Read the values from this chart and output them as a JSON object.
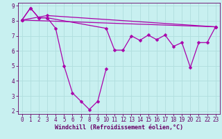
{
  "background_color": "#c8f0f0",
  "grid_color": "#b0dede",
  "line_color": "#aa00aa",
  "marker_color": "#aa00aa",
  "xlabel": "Windchill (Refroidissement éolien,°C)",
  "xlabel_color": "#660066",
  "tick_color": "#660066",
  "spine_color": "#660066",
  "xlim": [
    -0.5,
    23.5
  ],
  "ylim": [
    1.8,
    9.2
  ],
  "yticks": [
    2,
    3,
    4,
    5,
    6,
    7,
    8,
    9
  ],
  "xticks": [
    0,
    1,
    2,
    3,
    4,
    5,
    6,
    7,
    8,
    9,
    10,
    11,
    12,
    13,
    14,
    15,
    16,
    17,
    18,
    19,
    20,
    21,
    22,
    23
  ],
  "line1_x": [
    0,
    1,
    2,
    3,
    10,
    11,
    12,
    13,
    14,
    15,
    16,
    17,
    18,
    19,
    20,
    21,
    22,
    23
  ],
  "line1_y": [
    8.05,
    8.85,
    8.2,
    8.2,
    7.5,
    6.05,
    6.05,
    7.0,
    6.7,
    7.05,
    6.75,
    7.05,
    6.3,
    6.55,
    4.9,
    6.55,
    6.55,
    7.6
  ],
  "line2_x": [
    0,
    1,
    2,
    3,
    4,
    5,
    6,
    7,
    8,
    9,
    10
  ],
  "line2_y": [
    8.05,
    8.85,
    8.2,
    8.2,
    7.5,
    5.0,
    3.2,
    2.65,
    2.1,
    2.65,
    4.8
  ],
  "line3_x": [
    0,
    3,
    23
  ],
  "line3_y": [
    8.05,
    8.35,
    7.6
  ],
  "line4_x": [
    0,
    23
  ],
  "line4_y": [
    8.05,
    7.6
  ],
  "fontsize_xlabel": 6,
  "fontsize_ticks": 5.5,
  "marker_size": 2.5,
  "line_width": 0.9
}
